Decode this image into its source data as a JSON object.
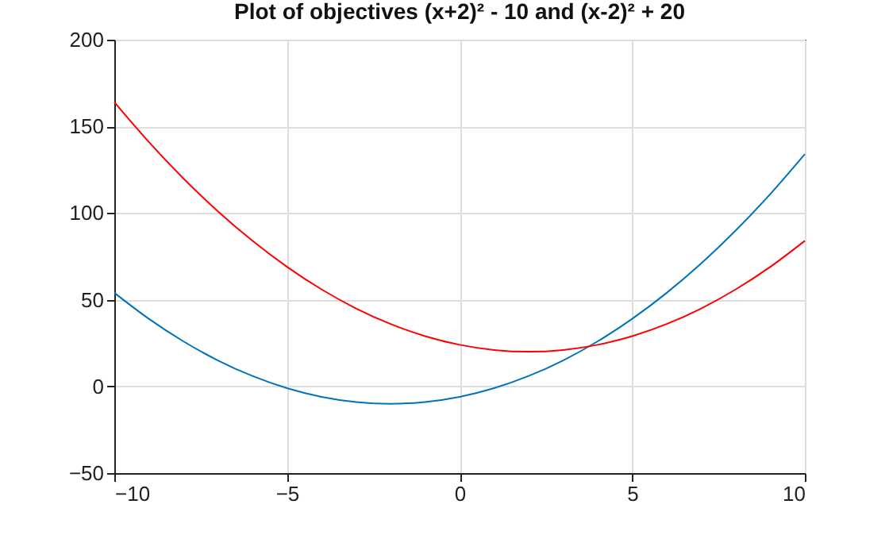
{
  "chart_data": {
    "type": "line",
    "title": "Plot of objectives (x+2)² - 10 and (x-2)² + 20",
    "x": [
      -10,
      -9,
      -8,
      -7,
      -6,
      -5,
      -4,
      -3,
      -2,
      -1,
      0,
      1,
      2,
      3,
      4,
      5,
      6,
      7,
      8,
      9,
      10
    ],
    "series": [
      {
        "color": "#0072bd",
        "values": [
          54,
          39,
          26,
          15,
          6,
          -1,
          -6,
          -9,
          -10,
          -9,
          -6,
          -1,
          6,
          15,
          26,
          39,
          54,
          71,
          90,
          111,
          134
        ]
      },
      {
        "color": "#ff0000",
        "values": [
          164,
          141,
          120,
          101,
          84,
          69,
          56,
          45,
          36,
          29,
          24,
          21,
          20,
          21,
          24,
          29,
          36,
          45,
          56,
          69,
          84
        ]
      }
    ],
    "xlim": [
      -10,
      10
    ],
    "xticks": [
      -10,
      -5,
      0,
      5,
      10
    ],
    "ylim": [
      -50,
      200
    ],
    "yticks": [
      -50,
      0,
      50,
      100,
      150,
      200
    ],
    "grid": true,
    "legend": false,
    "marker": "none",
    "line_style": "solid"
  }
}
